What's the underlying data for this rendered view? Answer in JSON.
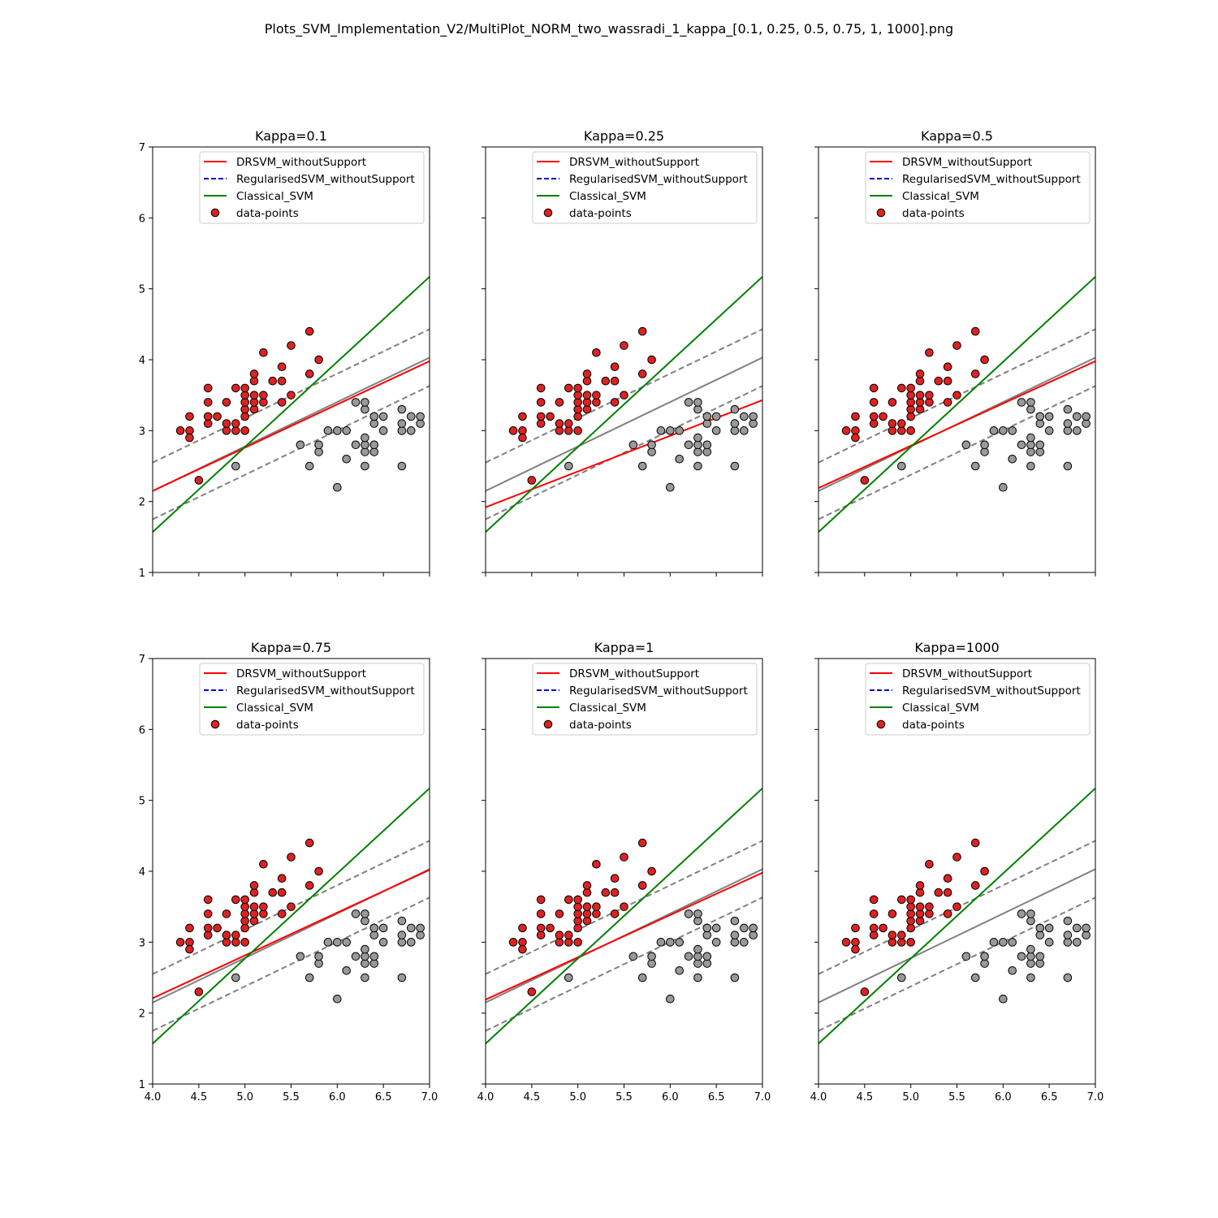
{
  "figure": {
    "title": "Plots_SVM_Implementation_V2/MultiPlot_NORM_two_wassradi_1_kappa_[0.1, 0.25, 0.5, 0.75, 1, 1000].png"
  },
  "colors": {
    "drsvm": "#ff0000",
    "regularised": "#0000cc",
    "classical": "#008000",
    "margin": "#808080",
    "point_pos": "#dd2222",
    "point_neg": "#999999"
  },
  "legend_labels": [
    "DRSVM_withoutSupport",
    "RegularisedSVM_withoutSupport",
    "Classical_SVM",
    "data-points"
  ],
  "chart_data": [
    {
      "type": "scatter",
      "title": "Kappa=0.1",
      "xlim": [
        4.0,
        7.0
      ],
      "ylim": [
        1,
        7
      ],
      "xticks": [
        "4.0",
        "4.5",
        "5.0",
        "5.5",
        "6.0",
        "6.5",
        "7.0"
      ],
      "yticks": [
        "1",
        "2",
        "3",
        "4",
        "5",
        "6",
        "7"
      ],
      "xtick_labels_shown": false,
      "ytick_labels_shown": true,
      "legend_position": "upper-right",
      "lines": {
        "drsvm": [
          [
            4.0,
            2.15
          ],
          [
            7.0,
            3.98
          ]
        ],
        "classical": [
          [
            4.0,
            1.57
          ],
          [
            7.0,
            5.17
          ]
        ],
        "svm_boundary": [
          [
            4.0,
            2.15
          ],
          [
            7.0,
            4.03
          ]
        ],
        "margin_upper": [
          [
            4.0,
            2.55
          ],
          [
            7.0,
            4.43
          ]
        ],
        "margin_lower": [
          [
            4.0,
            1.75
          ],
          [
            7.0,
            3.63
          ]
        ]
      }
    },
    {
      "type": "scatter",
      "title": "Kappa=0.25",
      "xlim": [
        4.0,
        7.0
      ],
      "ylim": [
        1,
        7
      ],
      "xticks": [
        "4.0",
        "4.5",
        "5.0",
        "5.5",
        "6.0",
        "6.5",
        "7.0"
      ],
      "yticks": [
        "1",
        "2",
        "3",
        "4",
        "5",
        "6",
        "7"
      ],
      "xtick_labels_shown": false,
      "ytick_labels_shown": false,
      "legend_position": "upper-right",
      "lines": {
        "drsvm": [
          [
            4.0,
            1.92
          ],
          [
            7.0,
            3.43
          ]
        ],
        "classical": [
          [
            4.0,
            1.57
          ],
          [
            7.0,
            5.17
          ]
        ],
        "svm_boundary": [
          [
            4.0,
            2.15
          ],
          [
            7.0,
            4.03
          ]
        ],
        "margin_upper": [
          [
            4.0,
            2.55
          ],
          [
            7.0,
            4.43
          ]
        ],
        "margin_lower": [
          [
            4.0,
            1.75
          ],
          [
            7.0,
            3.63
          ]
        ]
      }
    },
    {
      "type": "scatter",
      "title": "Kappa=0.5",
      "xlim": [
        4.0,
        7.0
      ],
      "ylim": [
        1,
        7
      ],
      "xticks": [
        "4.0",
        "4.5",
        "5.0",
        "5.5",
        "6.0",
        "6.5",
        "7.0"
      ],
      "yticks": [
        "1",
        "2",
        "3",
        "4",
        "5",
        "6",
        "7"
      ],
      "xtick_labels_shown": false,
      "ytick_labels_shown": false,
      "legend_position": "upper-right",
      "lines": {
        "drsvm": [
          [
            4.0,
            2.19
          ],
          [
            7.0,
            3.98
          ]
        ],
        "classical": [
          [
            4.0,
            1.57
          ],
          [
            7.0,
            5.17
          ]
        ],
        "svm_boundary": [
          [
            4.0,
            2.15
          ],
          [
            7.0,
            4.03
          ]
        ],
        "margin_upper": [
          [
            4.0,
            2.55
          ],
          [
            7.0,
            4.43
          ]
        ],
        "margin_lower": [
          [
            4.0,
            1.75
          ],
          [
            7.0,
            3.63
          ]
        ]
      }
    },
    {
      "type": "scatter",
      "title": "Kappa=0.75",
      "xlim": [
        4.0,
        7.0
      ],
      "ylim": [
        1,
        7
      ],
      "xticks": [
        "4.0",
        "4.5",
        "5.0",
        "5.5",
        "6.0",
        "6.5",
        "7.0"
      ],
      "yticks": [
        "1",
        "2",
        "3",
        "4",
        "5",
        "6",
        "7"
      ],
      "xtick_labels_shown": true,
      "ytick_labels_shown": true,
      "legend_position": "upper-right",
      "lines": {
        "drsvm": [
          [
            4.0,
            2.21
          ],
          [
            7.0,
            4.02
          ]
        ],
        "classical": [
          [
            4.0,
            1.57
          ],
          [
            7.0,
            5.17
          ]
        ],
        "svm_boundary": [
          [
            4.0,
            2.15
          ],
          [
            7.0,
            4.03
          ]
        ],
        "margin_upper": [
          [
            4.0,
            2.55
          ],
          [
            7.0,
            4.43
          ]
        ],
        "margin_lower": [
          [
            4.0,
            1.75
          ],
          [
            7.0,
            3.63
          ]
        ]
      }
    },
    {
      "type": "scatter",
      "title": "Kappa=1",
      "xlim": [
        4.0,
        7.0
      ],
      "ylim": [
        1,
        7
      ],
      "xticks": [
        "4.0",
        "4.5",
        "5.0",
        "5.5",
        "6.0",
        "6.5",
        "7.0"
      ],
      "yticks": [
        "1",
        "2",
        "3",
        "4",
        "5",
        "6",
        "7"
      ],
      "xtick_labels_shown": true,
      "ytick_labels_shown": false,
      "legend_position": "upper-right",
      "lines": {
        "drsvm": [
          [
            4.0,
            2.19
          ],
          [
            7.0,
            3.98
          ]
        ],
        "classical": [
          [
            4.0,
            1.57
          ],
          [
            7.0,
            5.17
          ]
        ],
        "svm_boundary": [
          [
            4.0,
            2.15
          ],
          [
            7.0,
            4.03
          ]
        ],
        "margin_upper": [
          [
            4.0,
            2.55
          ],
          [
            7.0,
            4.43
          ]
        ],
        "margin_lower": [
          [
            4.0,
            1.75
          ],
          [
            7.0,
            3.63
          ]
        ]
      }
    },
    {
      "type": "scatter",
      "title": "Kappa=1000",
      "xlim": [
        4.0,
        7.0
      ],
      "ylim": [
        1,
        7
      ],
      "xticks": [
        "4.0",
        "4.5",
        "5.0",
        "5.5",
        "6.0",
        "6.5",
        "7.0"
      ],
      "yticks": [
        "1",
        "2",
        "3",
        "4",
        "5",
        "6",
        "7"
      ],
      "xtick_labels_shown": true,
      "ytick_labels_shown": false,
      "legend_position": "upper-right",
      "lines": {
        "drsvm": null,
        "classical": [
          [
            4.0,
            1.57
          ],
          [
            7.0,
            5.17
          ]
        ],
        "svm_boundary": [
          [
            4.0,
            2.15
          ],
          [
            7.0,
            4.03
          ]
        ],
        "margin_upper": [
          [
            4.0,
            2.55
          ],
          [
            7.0,
            4.43
          ]
        ],
        "margin_lower": [
          [
            4.0,
            1.75
          ],
          [
            7.0,
            3.63
          ]
        ]
      }
    }
  ],
  "points": {
    "class_pos": [
      [
        4.3,
        3.0
      ],
      [
        4.4,
        3.0
      ],
      [
        4.4,
        2.9
      ],
      [
        4.4,
        3.2
      ],
      [
        4.5,
        2.3
      ],
      [
        4.6,
        3.1
      ],
      [
        4.6,
        3.2
      ],
      [
        4.6,
        3.4
      ],
      [
        4.6,
        3.6
      ],
      [
        4.7,
        3.2
      ],
      [
        4.8,
        3.0
      ],
      [
        4.8,
        3.1
      ],
      [
        4.8,
        3.4
      ],
      [
        4.9,
        3.0
      ],
      [
        4.9,
        3.1
      ],
      [
        4.9,
        3.6
      ],
      [
        5.0,
        3.0
      ],
      [
        5.0,
        3.2
      ],
      [
        5.0,
        3.3
      ],
      [
        5.0,
        3.4
      ],
      [
        5.0,
        3.5
      ],
      [
        5.0,
        3.6
      ],
      [
        5.1,
        3.3
      ],
      [
        5.1,
        3.4
      ],
      [
        5.1,
        3.5
      ],
      [
        5.1,
        3.7
      ],
      [
        5.1,
        3.8
      ],
      [
        5.2,
        3.4
      ],
      [
        5.2,
        3.5
      ],
      [
        5.2,
        4.1
      ],
      [
        5.3,
        3.7
      ],
      [
        5.4,
        3.4
      ],
      [
        5.4,
        3.7
      ],
      [
        5.4,
        3.9
      ],
      [
        5.5,
        3.5
      ],
      [
        5.5,
        4.2
      ],
      [
        5.7,
        3.8
      ],
      [
        5.7,
        4.4
      ],
      [
        5.8,
        4.0
      ]
    ],
    "class_neg": [
      [
        4.9,
        2.5
      ],
      [
        5.6,
        2.8
      ],
      [
        5.7,
        2.5
      ],
      [
        5.8,
        2.7
      ],
      [
        5.8,
        2.8
      ],
      [
        5.9,
        3.0
      ],
      [
        6.0,
        2.2
      ],
      [
        6.0,
        3.0
      ],
      [
        6.1,
        2.6
      ],
      [
        6.1,
        3.0
      ],
      [
        6.2,
        2.8
      ],
      [
        6.2,
        3.4
      ],
      [
        6.3,
        2.5
      ],
      [
        6.3,
        2.7
      ],
      [
        6.3,
        2.8
      ],
      [
        6.3,
        2.9
      ],
      [
        6.3,
        3.3
      ],
      [
        6.3,
        3.4
      ],
      [
        6.4,
        2.7
      ],
      [
        6.4,
        2.8
      ],
      [
        6.4,
        3.1
      ],
      [
        6.4,
        3.2
      ],
      [
        6.5,
        3.0
      ],
      [
        6.5,
        3.2
      ],
      [
        6.7,
        2.5
      ],
      [
        6.7,
        3.0
      ],
      [
        6.7,
        3.1
      ],
      [
        6.7,
        3.3
      ],
      [
        6.8,
        3.0
      ],
      [
        6.8,
        3.2
      ],
      [
        6.9,
        3.1
      ],
      [
        6.9,
        3.2
      ]
    ]
  }
}
